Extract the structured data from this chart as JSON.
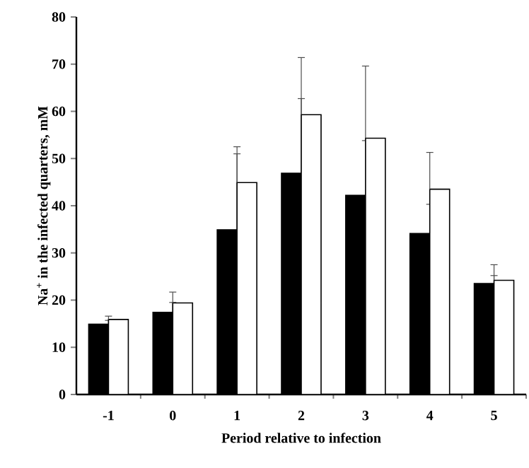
{
  "chart_data": {
    "type": "bar",
    "xlabel": "Period relative to infection",
    "ylabel": "Na$^{+}$ in the infected quarters, mM",
    "categories": [
      "-1",
      "0",
      "1",
      "2",
      "3",
      "4",
      "5"
    ],
    "series": [
      {
        "color": "#000000",
        "values": [
          14.9,
          17.4,
          34.9,
          46.9,
          42.2,
          34.1,
          23.5
        ],
        "errors": [
          [
            14.9,
            15.7
          ],
          [
            17.4,
            19.5
          ],
          [
            34.9,
            51.0
          ],
          [
            46.9,
            62.7
          ],
          [
            42.2,
            53.8
          ],
          [
            34.1,
            40.3
          ],
          [
            23.5,
            25.2
          ]
        ]
      },
      {
        "color": "#ffffff",
        "values": [
          15.9,
          19.4,
          44.9,
          59.3,
          54.3,
          43.5,
          24.2
        ],
        "errors": [
          [
            15.9,
            16.6
          ],
          [
            19.4,
            21.7
          ],
          [
            44.9,
            52.5
          ],
          [
            59.3,
            71.4
          ],
          [
            54.3,
            69.6
          ],
          [
            43.5,
            51.3
          ],
          [
            24.2,
            27.5
          ]
        ]
      }
    ],
    "ylim": [
      0,
      80
    ],
    "yticks": [
      0,
      10,
      20,
      30,
      40,
      50,
      60,
      70,
      80
    ],
    "grid": false
  }
}
